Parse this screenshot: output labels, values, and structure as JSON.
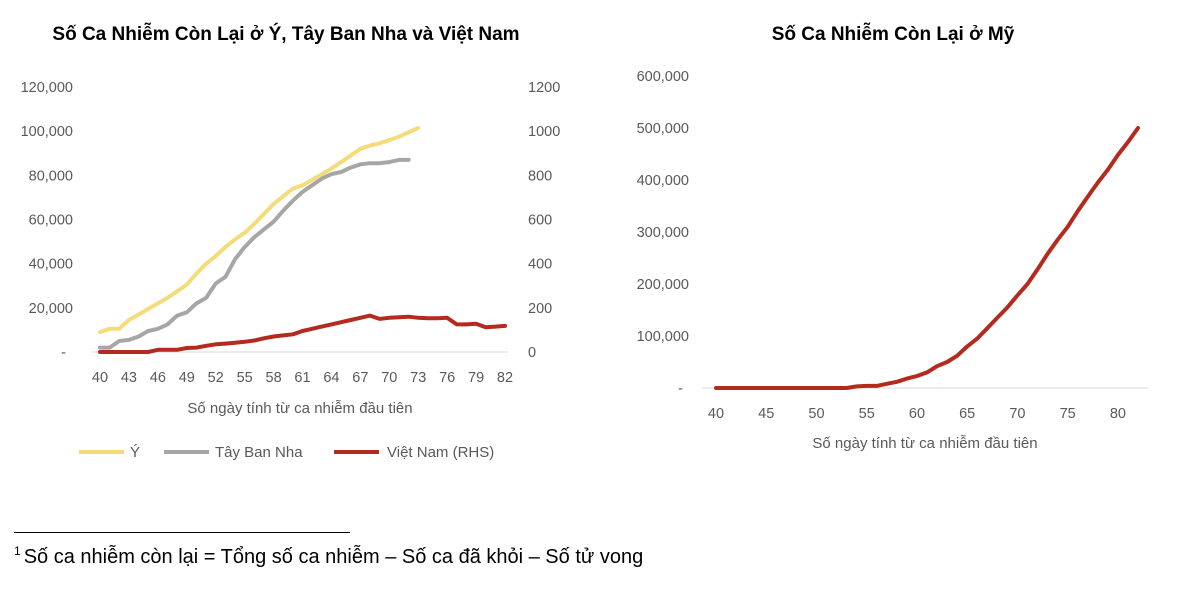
{
  "chart_data": [
    {
      "type": "line",
      "title": "Số Ca Nhiễm Còn Lại ở Ý, Tây Ban Nha và Việt Nam",
      "xlabel": "Số ngày tính từ ca nhiễm đầu tiên",
      "xlim": [
        40,
        82
      ],
      "xticks": [
        "40",
        "43",
        "46",
        "49",
        "52",
        "55",
        "58",
        "61",
        "64",
        "67",
        "70",
        "73",
        "76",
        "79",
        "82"
      ],
      "ylim": [
        0,
        120000
      ],
      "yticks": [
        "-",
        "20,000",
        "40,000",
        "60,000",
        "80,000",
        "100,000",
        "120,000"
      ],
      "y2lim": [
        0,
        1200
      ],
      "y2ticks": [
        "0",
        "200",
        "400",
        "600",
        "800",
        "1000",
        "1200"
      ],
      "legend_position": "bottom",
      "series": [
        {
          "name": "Ý",
          "color": "#f5dc7a",
          "axis": "left",
          "x": [
            40,
            41,
            42,
            43,
            44,
            45,
            46,
            47,
            48,
            49,
            50,
            51,
            52,
            53,
            54,
            55,
            56,
            57,
            58,
            59,
            60,
            61,
            62,
            63,
            64,
            65,
            66,
            67,
            68,
            69,
            70,
            71,
            72,
            73
          ],
          "values": [
            9000,
            10500,
            10500,
            14500,
            17000,
            19500,
            22000,
            24500,
            27500,
            30500,
            35500,
            40000,
            43500,
            47500,
            51000,
            54000,
            58000,
            62500,
            67000,
            70500,
            74000,
            75500,
            78000,
            80500,
            83000,
            86000,
            89000,
            92000,
            93500,
            94500,
            96000,
            97500,
            99500,
            101500
          ]
        },
        {
          "name": "Tây Ban Nha",
          "color": "#a6a6a6",
          "axis": "left",
          "x": [
            40,
            41,
            42,
            43,
            44,
            45,
            46,
            47,
            48,
            49,
            50,
            51,
            52,
            53,
            54,
            55,
            56,
            57,
            58,
            59,
            60,
            61,
            62,
            63,
            64,
            65,
            66,
            67,
            68,
            69,
            70,
            71,
            72
          ],
          "values": [
            2000,
            2000,
            5000,
            5500,
            7000,
            9500,
            10500,
            12500,
            16500,
            18000,
            22000,
            24500,
            31000,
            34000,
            42000,
            47500,
            52000,
            55500,
            59000,
            64000,
            68500,
            72500,
            75500,
            78500,
            80500,
            81500,
            83500,
            85000,
            85500,
            85500,
            86000,
            87000,
            87000
          ]
        },
        {
          "name": "Việt Nam (RHS)",
          "color": "#b42a1e",
          "axis": "right",
          "x": [
            40,
            41,
            42,
            43,
            44,
            45,
            46,
            47,
            48,
            49,
            50,
            51,
            52,
            53,
            54,
            55,
            56,
            57,
            58,
            59,
            60,
            61,
            62,
            63,
            64,
            65,
            66,
            67,
            68,
            69,
            70,
            71,
            72,
            73,
            74,
            75,
            76,
            77,
            78,
            79,
            80,
            81,
            82
          ],
          "values": [
            0,
            0,
            0,
            0,
            0,
            0,
            10,
            10,
            10,
            18,
            20,
            28,
            35,
            38,
            42,
            46,
            52,
            62,
            70,
            75,
            80,
            95,
            105,
            115,
            125,
            135,
            145,
            155,
            165,
            150,
            155,
            157,
            160,
            155,
            153,
            153,
            155,
            125,
            125,
            128,
            112,
            115,
            118
          ]
        }
      ]
    },
    {
      "type": "line",
      "title": "Số Ca Nhiễm Còn Lại ở Mỹ",
      "xlabel": "Số ngày tính từ ca nhiễm đầu tiên",
      "xlim": [
        40,
        82
      ],
      "xticks": [
        "40",
        "45",
        "50",
        "55",
        "60",
        "65",
        "70",
        "75",
        "80"
      ],
      "ylim": [
        0,
        600000
      ],
      "yticks": [
        "-",
        "100,000",
        "200,000",
        "300,000",
        "400,000",
        "500,000",
        "600,000"
      ],
      "series": [
        {
          "color": "#b42a1e",
          "x": [
            40,
            42,
            44,
            46,
            48,
            50,
            52,
            53,
            54,
            55,
            56,
            57,
            58,
            59,
            60,
            61,
            62,
            63,
            64,
            65,
            66,
            67,
            68,
            69,
            70,
            71,
            72,
            73,
            74,
            75,
            76,
            77,
            78,
            79,
            80,
            81,
            82
          ],
          "values": [
            0,
            0,
            0,
            0,
            0,
            0,
            0,
            0,
            3000,
            4000,
            4000,
            8000,
            12000,
            18000,
            23000,
            30000,
            42000,
            50000,
            62000,
            80000,
            95000,
            115000,
            135000,
            155000,
            178000,
            200000,
            228000,
            258000,
            285000,
            310000,
            340000,
            368000,
            395000,
            420000,
            448000,
            473000,
            500000
          ]
        }
      ]
    }
  ],
  "footnote": {
    "marker": "1",
    "text": "Số ca nhiễm còn lại = Tổng số ca nhiễm – Số ca đã khỏi – Số tử vong"
  }
}
